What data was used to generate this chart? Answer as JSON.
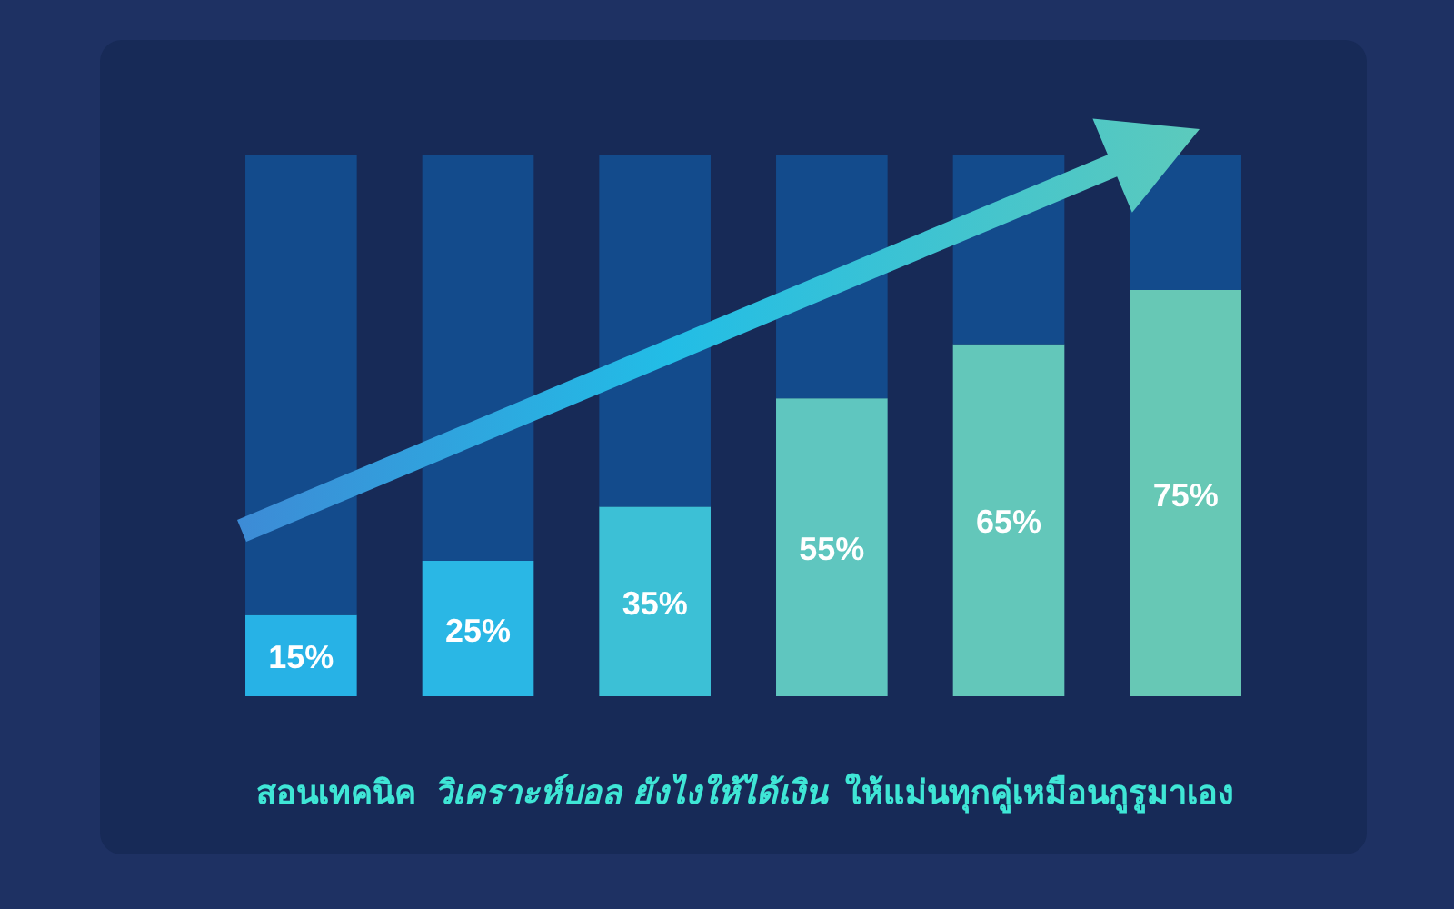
{
  "chart_data": {
    "type": "bar",
    "stacked": true,
    "categories": [
      null,
      null,
      null,
      null,
      null,
      null
    ],
    "ylim": [
      0,
      100
    ],
    "series": [
      {
        "colors": [
          "#27b2e6",
          "#2ab7e5",
          "#3cc0d6",
          "#5fc6bf",
          "#63c7ba",
          "#67c8b5"
        ],
        "values": [
          15,
          25,
          35,
          55,
          65,
          75
        ],
        "value_labels": [
          "15%",
          "25%",
          "35%",
          "55%",
          "65%",
          "75%"
        ]
      },
      {
        "color": "#134b8c",
        "values": [
          85,
          75,
          65,
          45,
          35,
          25
        ]
      }
    ],
    "annotations": [
      "สอนเทคนิค",
      "วิเคราะห์บอล ยังไงให้ได้เงิน",
      "ให้แม่นทุกคู่เหมือนกูรูมาเอง"
    ]
  }
}
